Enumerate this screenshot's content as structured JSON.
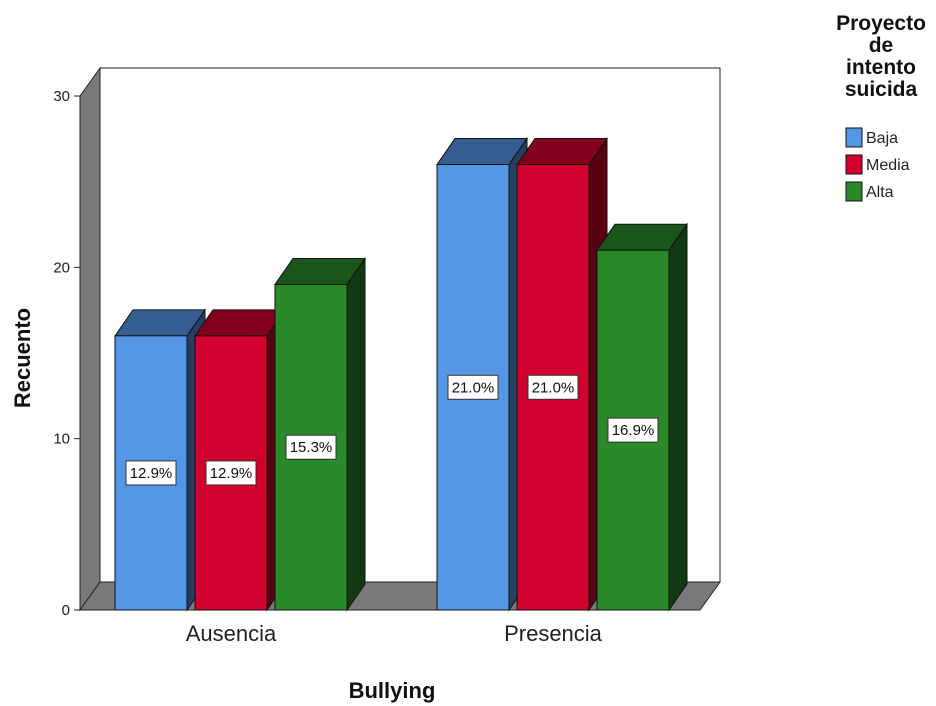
{
  "chart_data": {
    "type": "bar",
    "categories": [
      "Ausencia",
      "Presencia"
    ],
    "series": [
      {
        "name": "Baja",
        "color": "#5596E6",
        "values": [
          16,
          26
        ],
        "labels": [
          "12.9%",
          "21.0%"
        ]
      },
      {
        "name": "Media",
        "color": "#D2002D",
        "values": [
          16,
          26
        ],
        "labels": [
          "12.9%",
          "21.0%"
        ]
      },
      {
        "name": "Alta",
        "color": "#2A8A2A",
        "values": [
          19,
          21
        ],
        "labels": [
          "15.3%",
          "16.9%"
        ]
      }
    ],
    "xlabel": "Bullying",
    "ylabel": "Recuento",
    "ylim": [
      0,
      30
    ],
    "yticks": [
      "0",
      "10",
      "20",
      "30"
    ],
    "legend_title_lines": [
      "Proyecto",
      "de",
      "intento",
      "suicida"
    ],
    "legend_position": "top-right",
    "grid": false,
    "style": "3d"
  }
}
